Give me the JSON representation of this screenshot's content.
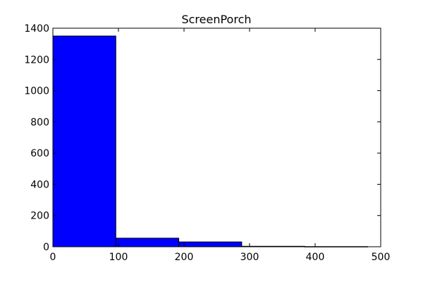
{
  "chart_data": {
    "type": "bar",
    "title": "ScreenPorch",
    "xlabel": "",
    "ylabel": "",
    "xlim": [
      0,
      500
    ],
    "ylim": [
      0,
      1400
    ],
    "xticks": [
      0,
      100,
      200,
      300,
      400,
      500
    ],
    "yticks": [
      0,
      200,
      400,
      600,
      800,
      1000,
      1200,
      1400
    ],
    "xtick_labels": [
      "0",
      "100",
      "200",
      "300",
      "400",
      "500"
    ],
    "ytick_labels": [
      "0",
      "200",
      "400",
      "600",
      "800",
      "1000",
      "1200",
      "1400"
    ],
    "bins": [
      {
        "x0": 0,
        "x1": 96,
        "count": 1350
      },
      {
        "x0": 96,
        "x1": 192,
        "count": 55
      },
      {
        "x0": 192,
        "x1": 288,
        "count": 31
      },
      {
        "x0": 288,
        "x1": 384,
        "count": 3
      },
      {
        "x0": 384,
        "x1": 480,
        "count": 1
      }
    ],
    "bar_color": "#0000ff",
    "edge_color": "#000000",
    "grid": false,
    "legend": "none"
  }
}
